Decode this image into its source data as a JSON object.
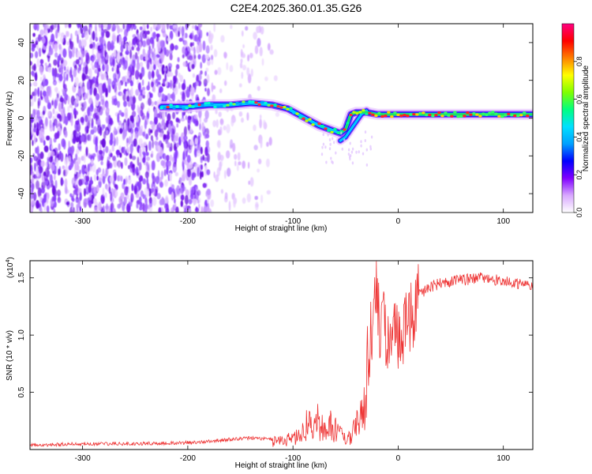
{
  "figure": {
    "title": "C2E4.2025.360.01.35.G26"
  },
  "chart_data": [
    {
      "type": "heatmap",
      "xlabel": "Height of straight line (km)",
      "ylabel": "Frequency (Hz)",
      "xlim": [
        -350,
        128
      ],
      "ylim": [
        -50,
        50
      ],
      "xticks": [
        -300,
        -200,
        -100,
        0,
        100
      ],
      "yticks": [
        -40,
        -20,
        0,
        20,
        40
      ],
      "colorbar": {
        "label": "Normalized spectral amplitude",
        "range": [
          0,
          1
        ],
        "ticks": [
          "0.0",
          "0.2",
          "0.4",
          "0.6",
          "0.8"
        ],
        "colors": [
          "#ffffff",
          "#d8a8ff",
          "#8000ff",
          "#0000ff",
          "#00a0ff",
          "#00e0ff",
          "#00ff80",
          "#80ff00",
          "#ffff00",
          "#ff8000",
          "#ff0000",
          "#ff0080"
        ]
      },
      "ridge": {
        "x": [
          -225,
          -200,
          -180,
          -160,
          -140,
          -120,
          -105,
          -95,
          -85,
          -75,
          -65,
          -55,
          -50,
          -45,
          -40,
          -30,
          -20,
          -10,
          0,
          20,
          40,
          60,
          80,
          100,
          128
        ],
        "y": [
          6,
          6,
          7,
          7,
          8,
          7,
          5,
          2,
          -1,
          -4,
          -6,
          -8,
          -6,
          2,
          3,
          3,
          2,
          2,
          2,
          2,
          2,
          2,
          2,
          2,
          2
        ]
      },
      "branch": {
        "x": [
          -55,
          -50,
          -45,
          -40,
          -35,
          -30
        ],
        "y": [
          -12,
          -10,
          -6,
          -2,
          2,
          4
        ]
      }
    },
    {
      "type": "line",
      "xlabel": "Height of straight line (km)",
      "ylabel": "SNR (10 * v/v)",
      "multiplier": "(x10",
      "multiplier_exp": "4",
      "multiplier_close": ")",
      "xlim": [
        -350,
        128
      ],
      "ylim": [
        0,
        1.65
      ],
      "xticks": [
        -300,
        -200,
        -100,
        0,
        100
      ],
      "yticks": [
        "0.5",
        "1.0",
        "1.5"
      ],
      "line_color": "#ee3333",
      "series": [
        {
          "x": [
            -350,
            -300,
            -250,
            -200,
            -180,
            -160,
            -140,
            -120,
            -110,
            -100,
            -90,
            -85,
            -80,
            -75,
            -70,
            -65,
            -60,
            -55,
            -50,
            -45,
            -40,
            -35,
            -30,
            -28,
            -25,
            -22,
            -20,
            -18,
            -15,
            -12,
            -10,
            -5,
            0,
            5,
            10,
            20,
            30,
            40,
            60,
            80,
            100,
            115,
            128
          ],
          "y": [
            0.04,
            0.05,
            0.05,
            0.06,
            0.07,
            0.09,
            0.1,
            0.09,
            0.1,
            0.13,
            0.22,
            0.32,
            0.38,
            0.3,
            0.25,
            0.3,
            0.23,
            0.18,
            0.12,
            0.15,
            0.25,
            0.45,
            0.7,
            0.85,
            1.05,
            1.25,
            1.35,
            1.15,
            1.1,
            1.05,
            1.0,
            0.95,
            1.0,
            1.05,
            1.15,
            1.35,
            1.42,
            1.45,
            1.48,
            1.5,
            1.47,
            1.45,
            1.44
          ]
        }
      ]
    }
  ]
}
